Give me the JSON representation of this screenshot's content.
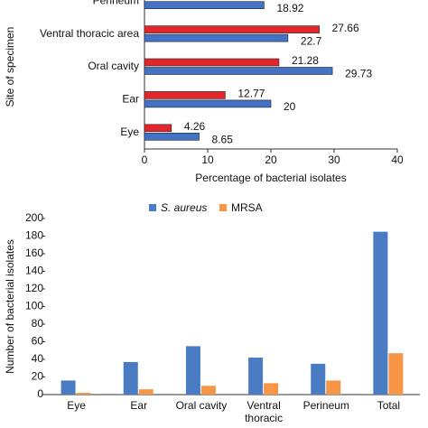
{
  "chart_data": [
    {
      "type": "hbar",
      "xlabel": "Percentage of bacterial isolates",
      "ylabel": "Site of specimen",
      "categories": [
        "Eye",
        "Ear",
        "Oral cavity",
        "Ventral thoracic area",
        "Perineum"
      ],
      "series": [
        {
          "color": "#e3262b",
          "values": [
            4.26,
            12.77,
            21.28,
            27.66,
            null
          ]
        },
        {
          "color": "#4472c4",
          "values": [
            8.65,
            20,
            29.73,
            22.7,
            18.92
          ]
        }
      ],
      "xlim": [
        0,
        40
      ],
      "xticks": [
        0,
        10,
        20,
        30,
        40
      ]
    },
    {
      "type": "bar",
      "ylabel": "Number of bacterial isolates",
      "categories": [
        "Eye",
        "Ear",
        "Oral cavity",
        "Ventral thoracic",
        "Perineum",
        "Total"
      ],
      "series": [
        {
          "name": "S. aureus",
          "color": "#4a7cc4",
          "values": [
            16,
            37,
            55,
            42,
            35,
            185
          ]
        },
        {
          "name": "MRSA",
          "color": "#f79646",
          "values": [
            2,
            6,
            10,
            13,
            16,
            47
          ]
        }
      ],
      "ylim": [
        0,
        200
      ],
      "yticks": [
        0,
        20,
        40,
        60,
        80,
        100,
        120,
        140,
        160,
        180,
        200
      ]
    }
  ]
}
